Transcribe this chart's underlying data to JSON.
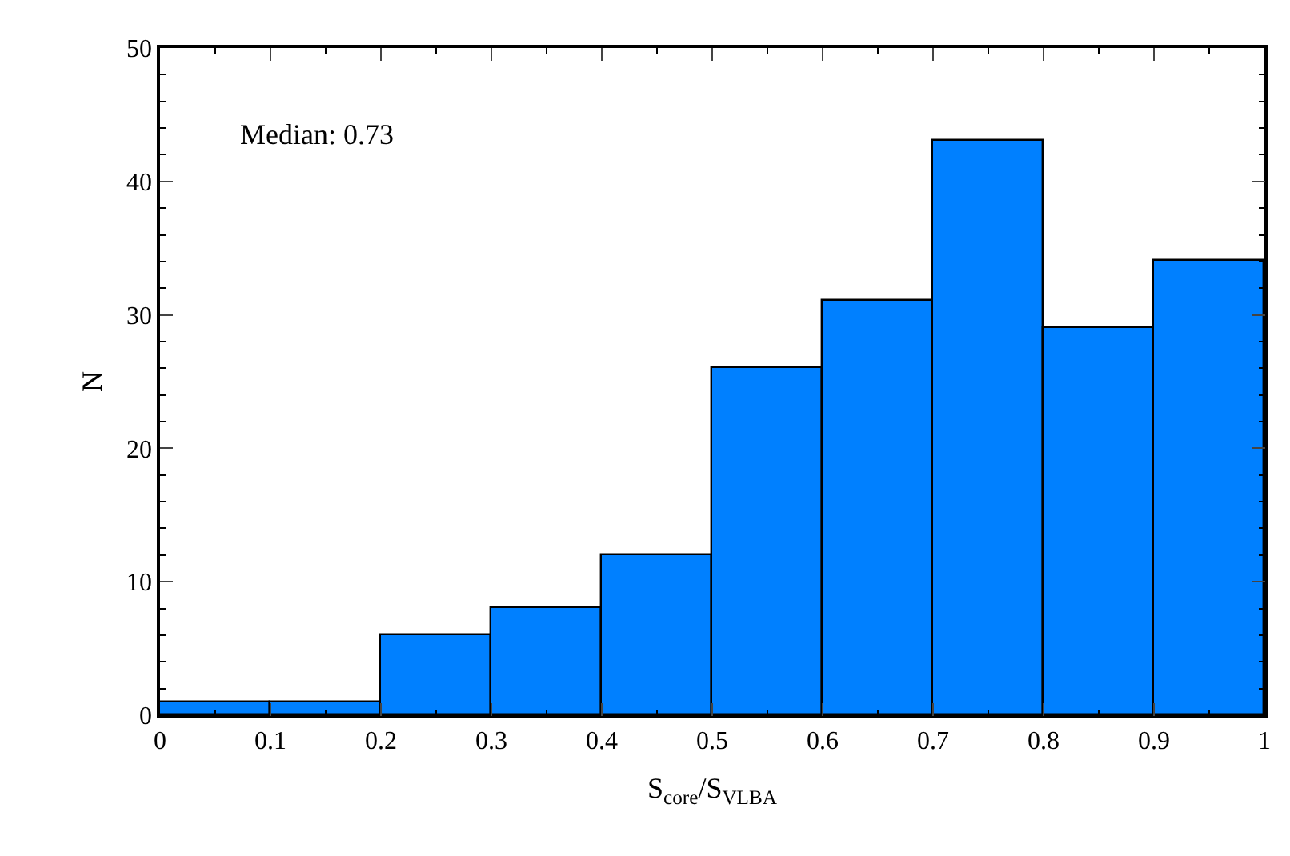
{
  "chart_data": {
    "type": "histogram",
    "xlabel": "S$_{core}$/S$_{VLBA}$",
    "ylabel": "N",
    "annotations": [
      "Median: 0.73"
    ],
    "bins": [
      0,
      0.1,
      0.2,
      0.3,
      0.4,
      0.5,
      0.6,
      0.7,
      0.8,
      0.9,
      1
    ],
    "values": [
      1,
      1,
      6,
      8,
      12,
      26,
      31,
      43,
      29,
      34
    ],
    "color": "#0080ff",
    "xlim": [
      0,
      1
    ],
    "xticks": [
      0,
      0.1,
      0.2,
      0.3,
      0.4,
      0.5,
      0.6,
      0.7,
      0.8,
      0.9,
      1
    ],
    "ylim": [
      0,
      50
    ],
    "yticks": [
      0,
      10,
      20,
      30,
      40,
      50
    ]
  }
}
